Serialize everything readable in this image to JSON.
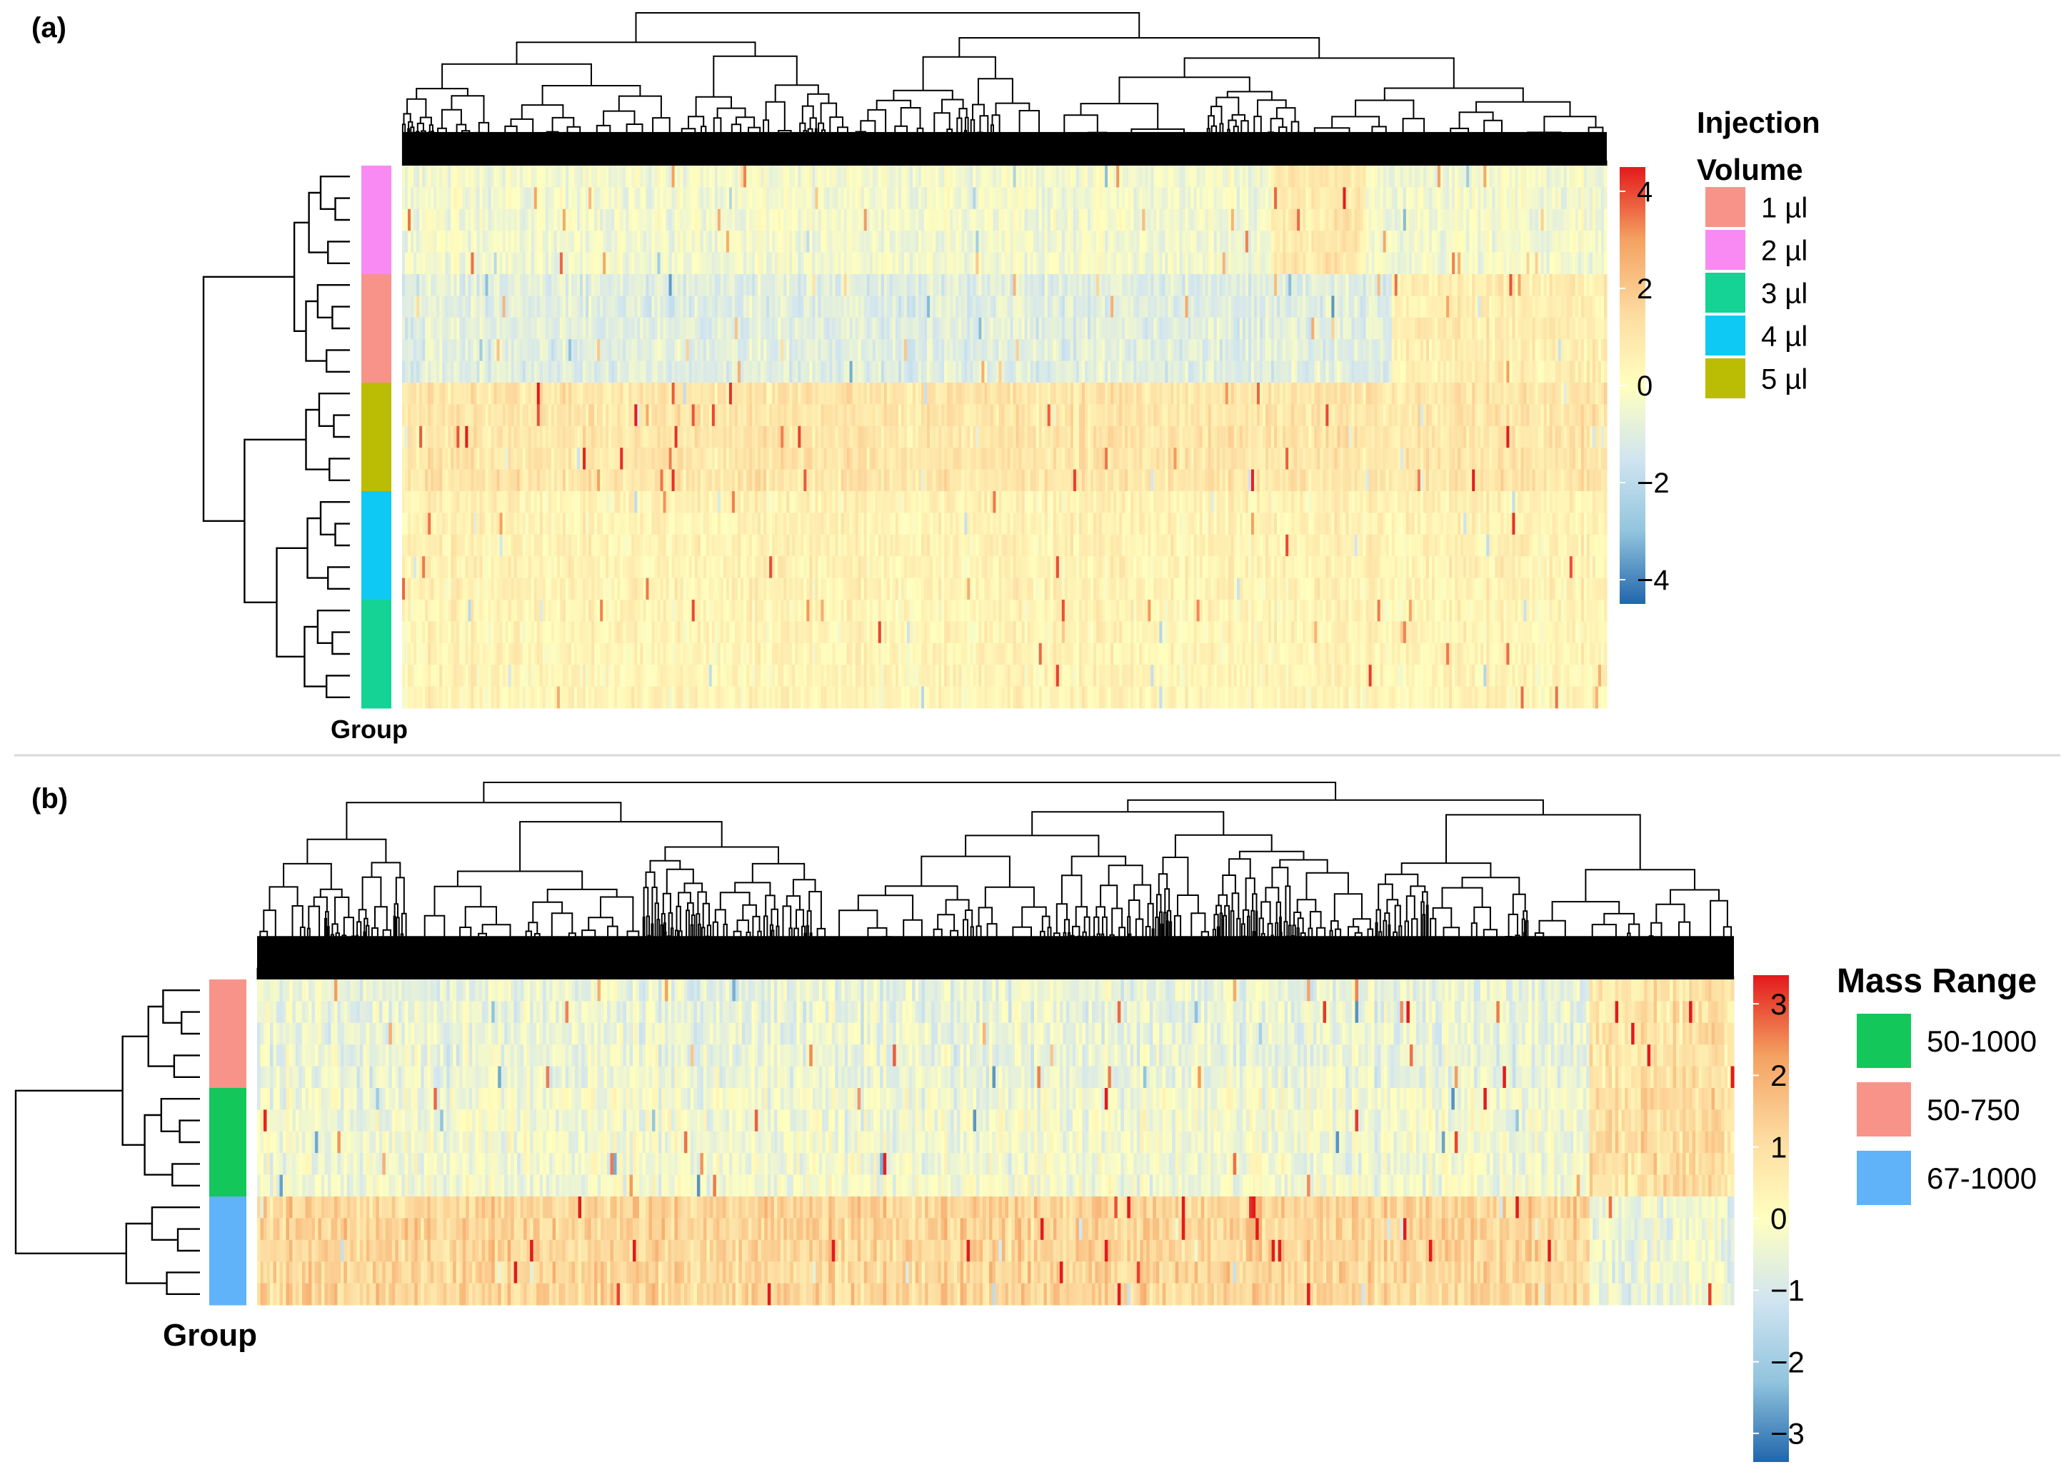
{
  "chart_data": [
    {
      "panel_label": "(a)",
      "type": "heatmap",
      "clustered": true,
      "row_annotation_title": "Group",
      "legend_title_lines": [
        "Injection",
        "Volume"
      ],
      "groups": [
        {
          "label": "1 µl",
          "color": "#F8938A"
        },
        {
          "label": "2 µl",
          "color": "#F98AF3"
        },
        {
          "label": "3 µl",
          "color": "#14D394"
        },
        {
          "label": "4 µl",
          "color": "#0FC9F5"
        },
        {
          "label": "5 µl",
          "color": "#BBBC04"
        }
      ],
      "row_group_order": [
        "2 µl",
        "1 µl",
        "5 µl",
        "4 µl",
        "3 µl"
      ],
      "rows_per_group": 5,
      "color_scale": {
        "min": -4.5,
        "max": 4.5,
        "ticks": [
          4,
          2,
          0,
          -2,
          -4
        ],
        "tick_labels": [
          "4",
          "2",
          "0",
          "−2",
          "−4"
        ],
        "colors": [
          "#2166AC",
          "#92C5DE",
          "#D1E5F0",
          "#FFFFBF",
          "#FDDBA0",
          "#F4A261",
          "#E31A1C"
        ]
      },
      "mean_value_by_group": {
        "2 µl": -0.4,
        "1 µl": -1.0,
        "5 µl": 1.0,
        "4 µl": 0.5,
        "3 µl": 0.4
      }
    },
    {
      "panel_label": "(b)",
      "type": "heatmap",
      "clustered": true,
      "row_annotation_title": "Group",
      "legend_title_lines": [
        "Mass Range"
      ],
      "groups": [
        {
          "label": "50-1000",
          "color": "#14C75A"
        },
        {
          "label": "50-750",
          "color": "#F8938A"
        },
        {
          "label": "67-1000",
          "color": "#60B2F9"
        }
      ],
      "row_group_order": [
        "50-750",
        "50-1000",
        "67-1000"
      ],
      "rows_per_group": 5,
      "color_scale": {
        "min": -3.4,
        "max": 3.4,
        "ticks": [
          3,
          2,
          1,
          0,
          -1,
          -2,
          -3
        ],
        "tick_labels": [
          "3",
          "2",
          "1",
          "0",
          "−1",
          "−2",
          "−3"
        ],
        "colors": [
          "#2166AC",
          "#92C5DE",
          "#D1E5F0",
          "#FFFFBF",
          "#FDDBA0",
          "#F4A261",
          "#E31A1C"
        ]
      },
      "mean_value_by_group": {
        "50-750": -0.5,
        "50-1000": -0.3,
        "67-1000": 1.2
      }
    }
  ]
}
